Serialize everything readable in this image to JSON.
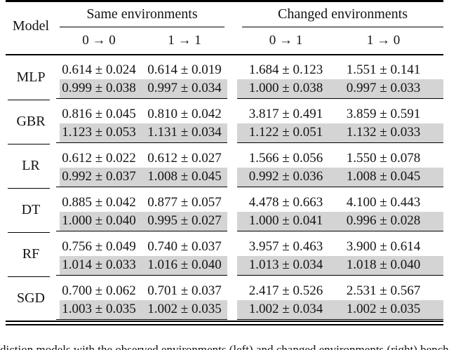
{
  "colors": {
    "highlight": "#d4d4d4",
    "rule": "#000000",
    "text": "#141414"
  },
  "table": {
    "model_header": "Model",
    "groups": [
      {
        "label": "Same environments",
        "columns": [
          "0 → 0",
          "1 → 1"
        ]
      },
      {
        "label": "Changed environments",
        "columns": [
          "0 → 1",
          "1 → 0"
        ]
      }
    ],
    "rows": [
      {
        "model": "MLP",
        "line1": [
          "0.614 ± 0.024",
          "0.614 ± 0.019",
          "1.684 ± 0.123",
          "1.551 ± 0.141"
        ],
        "line2": [
          "0.999 ± 0.038",
          "0.997 ± 0.034",
          "1.000 ± 0.038",
          "0.997 ± 0.033"
        ]
      },
      {
        "model": "GBR",
        "line1": [
          "0.816 ± 0.045",
          "0.810 ± 0.042",
          "3.817 ± 0.491",
          "3.859 ± 0.591"
        ],
        "line2": [
          "1.123 ± 0.053",
          "1.131 ± 0.034",
          "1.122 ± 0.051",
          "1.132 ± 0.033"
        ]
      },
      {
        "model": "LR",
        "line1": [
          "0.612 ± 0.022",
          "0.612 ± 0.027",
          "1.566 ± 0.056",
          "1.550 ± 0.078"
        ],
        "line2": [
          "0.992 ± 0.037",
          "1.008 ± 0.045",
          "0.992 ± 0.036",
          "1.008 ± 0.045"
        ]
      },
      {
        "model": "DT",
        "line1": [
          "0.885 ± 0.042",
          "0.877 ± 0.057",
          "4.478 ± 0.663",
          "4.100 ± 0.443"
        ],
        "line2": [
          "1.000 ± 0.040",
          "0.995 ± 0.027",
          "1.000 ± 0.041",
          "0.996 ± 0.028"
        ]
      },
      {
        "model": "RF",
        "line1": [
          "0.756 ± 0.049",
          "0.740 ± 0.037",
          "3.957 ± 0.463",
          "3.900 ± 0.614"
        ],
        "line2": [
          "1.014 ± 0.033",
          "1.016 ± 0.040",
          "1.013 ± 0.034",
          "1.018 ± 0.040"
        ]
      },
      {
        "model": "SGD",
        "line1": [
          "0.700 ± 0.062",
          "0.701 ± 0.037",
          "2.417 ± 0.526",
          "2.531 ± 0.567"
        ],
        "line2": [
          "1.003 ± 0.035",
          "1.002 ± 0.035",
          "1.002 ± 0.034",
          "1.002 ± 0.035"
        ]
      }
    ]
  },
  "caption": {
    "fragment": "diction models with the observed environments (left) and changed environments (right) benchmarked by grid search."
  }
}
